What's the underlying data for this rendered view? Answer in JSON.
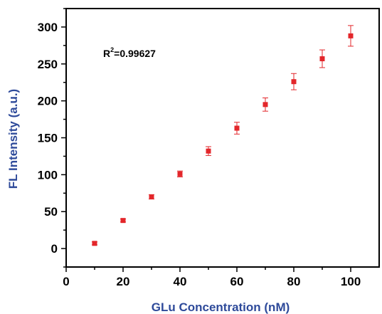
{
  "chart_data": {
    "type": "scatter",
    "xlabel": "GLu Concentration (nM)",
    "ylabel": "FL Intensity (a.u.)",
    "xlim": [
      0,
      110
    ],
    "ylim": [
      -25,
      325
    ],
    "xticks": [
      0,
      20,
      40,
      60,
      80,
      100
    ],
    "yticks": [
      0,
      50,
      100,
      150,
      200,
      250,
      300
    ],
    "xtick_labels": [
      "0",
      "20",
      "40",
      "60",
      "80",
      "100"
    ],
    "ytick_labels": [
      "0",
      "50",
      "100",
      "150",
      "200",
      "250",
      "300"
    ],
    "annotation": {
      "base": "R",
      "sup": "2",
      "rest": "=0.99627"
    },
    "grid": false,
    "legend": "none",
    "series": [
      {
        "x": [
          10,
          20,
          30,
          40,
          50,
          60,
          70,
          80,
          90,
          100
        ],
        "y": [
          7,
          38,
          70,
          101,
          132,
          163,
          195,
          226,
          257,
          288
        ],
        "err": [
          2,
          2,
          3,
          4,
          6,
          8,
          9,
          11,
          12,
          14
        ],
        "color": "#e3262a",
        "marker": "square"
      }
    ],
    "colors": {
      "axis": "#000000",
      "label": "#2e4a9a",
      "marker": "#e3262a"
    }
  }
}
